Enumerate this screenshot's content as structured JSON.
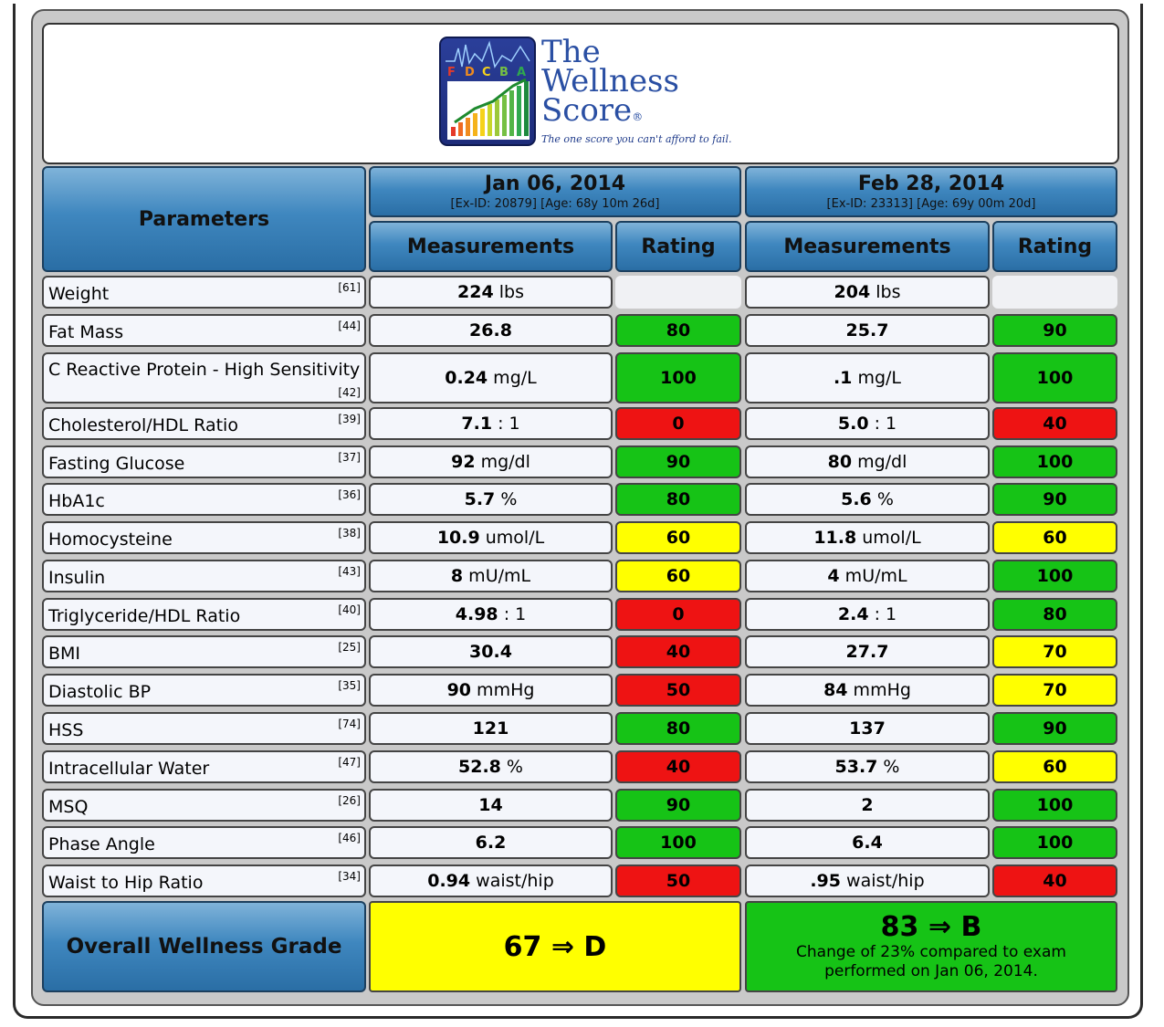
{
  "logo": {
    "grades": [
      "F",
      "D",
      "C",
      "B",
      "A"
    ],
    "title_line1": "The",
    "title_line2": "Wellness",
    "title_line3": "Score",
    "registered": "®",
    "tagline": "The one score you can't afford to fail."
  },
  "header": {
    "parameters_label": "Parameters",
    "exam1": {
      "date": "Jan 06, 2014",
      "info": "[Ex-ID: 20879] [Age: 68y 10m 26d]"
    },
    "exam2": {
      "date": "Feb 28, 2014",
      "info": "[Ex-ID: 23313] [Age: 69y 00m 20d]"
    },
    "measurements_label": "Measurements",
    "rating_label": "Rating"
  },
  "rows": [
    {
      "name": "Weight",
      "id": "[61]",
      "m1_value": "224",
      "m1_unit": " lbs",
      "r1": "",
      "m2_value": "204",
      "m2_unit": " lbs",
      "r2": ""
    },
    {
      "name": "Fat Mass",
      "id": "[44]",
      "m1_value": "26.8",
      "m1_unit": "",
      "r1": "80",
      "m2_value": "25.7",
      "m2_unit": "",
      "r2": "90"
    },
    {
      "name": "C Reactive Protein - High Sensitivity",
      "id": "[42]",
      "m1_value": "0.24",
      "m1_unit": " mg/L",
      "r1": "100",
      "m2_value": ".1",
      "m2_unit": " mg/L",
      "r2": "100"
    },
    {
      "name": "Cholesterol/HDL Ratio",
      "id": "[39]",
      "m1_value": "7.1",
      "m1_unit": " : 1",
      "r1": "0",
      "m2_value": "5.0",
      "m2_unit": " : 1",
      "r2": "40"
    },
    {
      "name": "Fasting Glucose",
      "id": "[37]",
      "m1_value": "92",
      "m1_unit": " mg/dl",
      "r1": "90",
      "m2_value": "80",
      "m2_unit": " mg/dl",
      "r2": "100"
    },
    {
      "name": "HbA1c",
      "id": "[36]",
      "m1_value": "5.7",
      "m1_unit": " %",
      "r1": "80",
      "m2_value": "5.6",
      "m2_unit": " %",
      "r2": "90"
    },
    {
      "name": "Homocysteine",
      "id": "[38]",
      "m1_value": "10.9",
      "m1_unit": " umol/L",
      "r1": "60",
      "m2_value": "11.8",
      "m2_unit": " umol/L",
      "r2": "60"
    },
    {
      "name": "Insulin",
      "id": "[43]",
      "m1_value": "8",
      "m1_unit": " mU/mL",
      "r1": "60",
      "m2_value": "4",
      "m2_unit": " mU/mL",
      "r2": "100"
    },
    {
      "name": "Triglyceride/HDL Ratio",
      "id": "[40]",
      "m1_value": "4.98",
      "m1_unit": " : 1",
      "r1": "0",
      "m2_value": "2.4",
      "m2_unit": " : 1",
      "r2": "80"
    },
    {
      "name": "BMI",
      "id": "[25]",
      "m1_value": "30.4",
      "m1_unit": "",
      "r1": "40",
      "m2_value": "27.7",
      "m2_unit": "",
      "r2": "70"
    },
    {
      "name": "Diastolic BP",
      "id": "[35]",
      "m1_value": "90",
      "m1_unit": " mmHg",
      "r1": "50",
      "m2_value": "84",
      "m2_unit": " mmHg",
      "r2": "70"
    },
    {
      "name": "HSS",
      "id": "[74]",
      "m1_value": "121",
      "m1_unit": "",
      "r1": "80",
      "m2_value": "137",
      "m2_unit": "",
      "r2": "90"
    },
    {
      "name": "Intracellular Water",
      "id": "[47]",
      "m1_value": "52.8",
      "m1_unit": " %",
      "r1": "40",
      "m2_value": "53.7",
      "m2_unit": " %",
      "r2": "60"
    },
    {
      "name": "MSQ",
      "id": "[26]",
      "m1_value": "14",
      "m1_unit": "",
      "r1": "90",
      "m2_value": "2",
      "m2_unit": "",
      "r2": "100"
    },
    {
      "name": "Phase Angle",
      "id": "[46]",
      "m1_value": "6.2",
      "m1_unit": "",
      "r1": "100",
      "m2_value": "6.4",
      "m2_unit": "",
      "r2": "100"
    },
    {
      "name": "Waist to Hip Ratio",
      "id": "[34]",
      "m1_value": "0.94",
      "m1_unit": " waist/hip",
      "r1": "50",
      "m2_value": ".95",
      "m2_unit": " waist/hip",
      "r2": "40"
    }
  ],
  "overall": {
    "label": "Overall Wellness Grade",
    "exam1_grade": "67 ⇒ D",
    "exam2_grade": "83 ⇒ B",
    "exam2_change": "Change of 23% compared to exam performed on Jan 06, 2014."
  },
  "colors": {
    "green": "#16c316",
    "red": "#ee1313",
    "yellow": "#ffff00",
    "header_blue": "#3f87bf"
  }
}
